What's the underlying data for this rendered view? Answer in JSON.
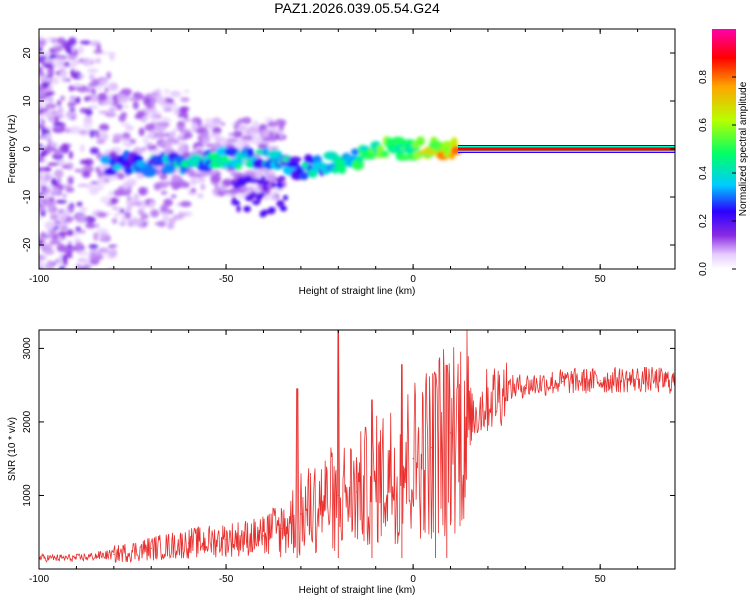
{
  "title": "PAZ1.2026.039.05.54.G24",
  "chart_data": [
    {
      "type": "heatmap",
      "title": "PAZ1.2026.039.05.54.G24",
      "xlabel": "Height of straight line (km)",
      "ylabel": "Frequency (Hz)",
      "xlim": [
        -100,
        70
      ],
      "ylim": [
        -25,
        25
      ],
      "xticks": [
        -100,
        -50,
        0,
        50
      ],
      "yticks": [
        -20,
        -10,
        0,
        10,
        20
      ],
      "colorbar": {
        "label": "Normalized spectral amplitude",
        "range": [
          0,
          1
        ],
        "ticks": [
          0.0,
          0.2,
          0.4,
          0.6,
          0.8
        ],
        "colormap": [
          "#ffffff",
          "#e6ccff",
          "#8a2be2",
          "#2b00ff",
          "#00ccff",
          "#00ff66",
          "#b8ff00",
          "#ffa500",
          "#ff0000",
          "#ff00aa"
        ]
      },
      "ridge": {
        "description": "dominant Doppler frequency vs height",
        "x": [
          -80,
          -70,
          -60,
          -50,
          -40,
          -30,
          -20,
          -10,
          0,
          10,
          20,
          30,
          40,
          50,
          60,
          70
        ],
        "frequency": [
          -3,
          -3,
          -3,
          -2,
          -2,
          -4,
          -3,
          0,
          0,
          0,
          0,
          0,
          0,
          0,
          0,
          0
        ],
        "amplitude": [
          0.25,
          0.3,
          0.35,
          0.4,
          0.3,
          0.3,
          0.35,
          0.45,
          0.55,
          0.7,
          0.95,
          0.95,
          0.95,
          0.95,
          0.95,
          0.95
        ]
      }
    },
    {
      "type": "line",
      "xlabel": "Height of straight line (km)",
      "ylabel": "SNR (10 * v/v)",
      "xlim": [
        -100,
        70
      ],
      "ylim": [
        0,
        3250
      ],
      "xticks": [
        -100,
        -50,
        0,
        50
      ],
      "yticks": [
        1000,
        2000,
        3000
      ],
      "color": "#e8312f",
      "series": [
        {
          "name": "SNR",
          "x": [
            -100,
            -90,
            -80,
            -70,
            -60,
            -50,
            -40,
            -35,
            -30,
            -25,
            -20,
            -15,
            -10,
            -5,
            0,
            5,
            10,
            15,
            20,
            25,
            30,
            40,
            50,
            60,
            70
          ],
          "values": [
            150,
            150,
            200,
            280,
            350,
            400,
            450,
            550,
            750,
            900,
            1000,
            1050,
            1200,
            1350,
            1500,
            1650,
            1850,
            2050,
            2300,
            2450,
            2500,
            2550,
            2560,
            2580,
            2550
          ]
        }
      ],
      "spikes": {
        "x": [
          -31,
          -20,
          -11,
          -3,
          6,
          9
        ],
        "values": [
          2450,
          3280,
          2300,
          2780,
          2650,
          2770
        ]
      }
    }
  ]
}
